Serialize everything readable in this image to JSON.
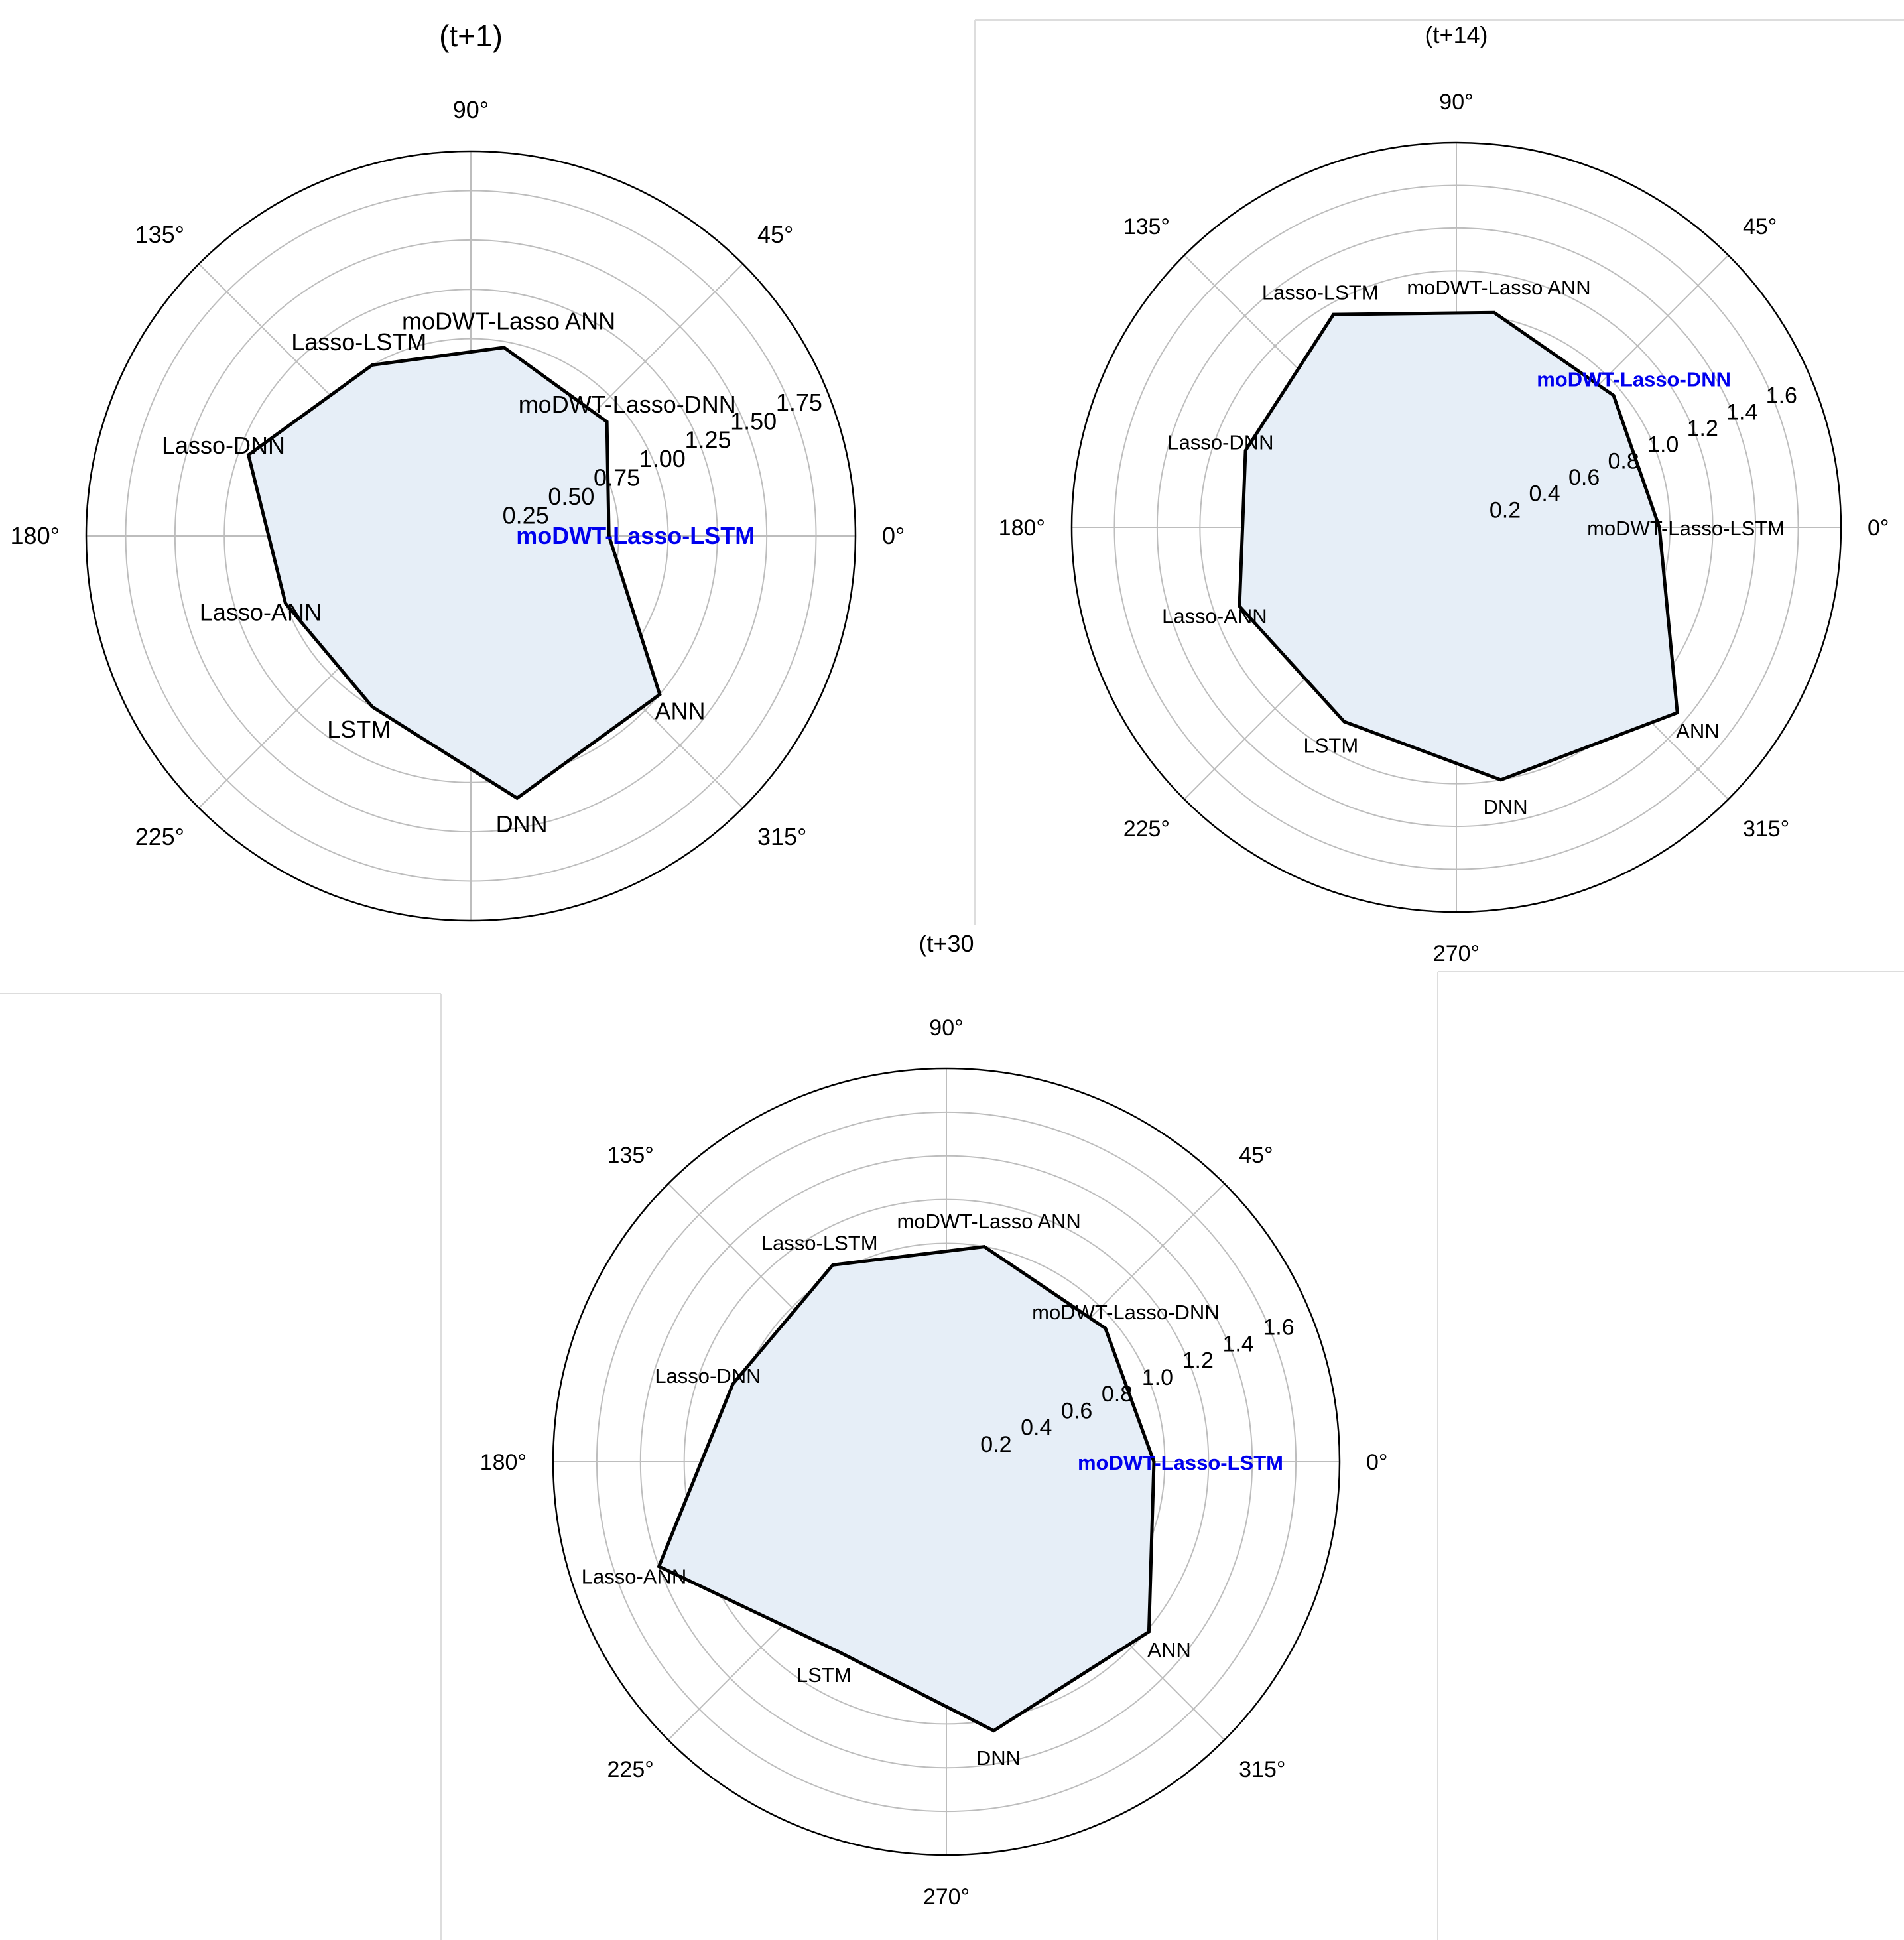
{
  "chart_data": [
    {
      "type": "radar",
      "title": "(t+1)",
      "categories": [
        "moDWT-Lasso-LSTM",
        "moDWT-Lasso-DNN",
        "moDWT-Lasso ANN",
        "Lasso-LSTM",
        "Lasso-DNN",
        "Lasso-ANN",
        "LSTM",
        "DNN",
        "ANN"
      ],
      "highlight": "moDWT-Lasso-LSTM",
      "values": [
        0.7,
        0.9,
        0.97,
        1.0,
        1.2,
        1.0,
        1.0,
        1.35,
        1.25
      ],
      "rlim": [
        0,
        1.95
      ],
      "radial_ticks": [
        0.25,
        0.5,
        0.75,
        1.0,
        1.25,
        1.5,
        1.75
      ],
      "radial_tick_labels": [
        "0.25",
        "0.50",
        "0.75",
        "1.00",
        "1.25",
        "1.50",
        "1.75"
      ],
      "angle_labels": [
        "0°",
        "45°",
        "90°",
        "135°",
        "180°",
        "225°",
        "315°"
      ],
      "grid": true,
      "colors": {
        "fill": "#e6eef7",
        "line": "#000000",
        "grid": "#bdbdbd",
        "highlight": "#0000ee"
      }
    },
    {
      "type": "radar",
      "title": "(t+14)",
      "categories": [
        "moDWT-Lasso-LSTM",
        "moDWT-Lasso-DNN",
        "moDWT-Lasso ANN",
        "Lasso-LSTM",
        "Lasso-DNN",
        "Lasso-ANN",
        "LSTM",
        "DNN",
        "ANN"
      ],
      "highlight": "moDWT-Lasso-DNN",
      "values": [
        0.95,
        0.96,
        1.02,
        1.15,
        1.05,
        1.08,
        1.05,
        1.2,
        1.35
      ],
      "rlim": [
        0,
        1.8
      ],
      "radial_ticks": [
        0.2,
        0.4,
        0.6,
        0.8,
        1.0,
        1.2,
        1.4,
        1.6
      ],
      "radial_tick_labels": [
        "0.2",
        "0.4",
        "0.6",
        "0.8",
        "1.0",
        "1.2",
        "1.4",
        "1.6"
      ],
      "angle_labels": [
        "0°",
        "45°",
        "90°",
        "135°",
        "180°",
        "225°",
        "270°",
        "315°"
      ],
      "grid": true,
      "colors": {
        "fill": "#e6eef7",
        "line": "#000000",
        "grid": "#bdbdbd",
        "highlight": "#0000ee"
      }
    },
    {
      "type": "radar",
      "title": "(t+30",
      "categories": [
        "moDWT-Lasso-LSTM",
        "moDWT-Lasso-DNN",
        "moDWT-Lasso ANN",
        "Lasso-LSTM",
        "Lasso-DNN",
        "Lasso-ANN",
        "LSTM",
        "DNN",
        "ANN"
      ],
      "highlight": "moDWT-Lasso-LSTM",
      "values": [
        0.95,
        0.95,
        1.0,
        1.04,
        1.04,
        1.4,
        1.0,
        1.25,
        1.21
      ],
      "rlim": [
        0,
        1.8
      ],
      "radial_ticks": [
        0.2,
        0.4,
        0.6,
        0.8,
        1.0,
        1.2,
        1.4,
        1.6
      ],
      "radial_tick_labels": [
        "0.2",
        "0.4",
        "0.6",
        "0.8",
        "1.0",
        "1.2",
        "1.4",
        "1.6"
      ],
      "angle_labels": [
        "0°",
        "45°",
        "90°",
        "135°",
        "180°",
        "225°",
        "270°",
        "315°"
      ],
      "grid": true,
      "colors": {
        "fill": "#e6eef7",
        "line": "#000000",
        "grid": "#bdbdbd",
        "highlight": "#0000ee"
      }
    }
  ]
}
